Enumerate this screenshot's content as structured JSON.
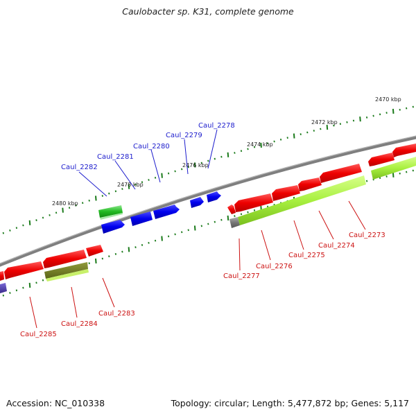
{
  "title": "Caulobacter sp. K31, complete genome",
  "footer": {
    "accession": "Accession: NC_010338",
    "summary": "Topology: circular; Length: 5,477,872 bp; Genes: 5,117"
  },
  "colors": {
    "backbone": "#7f7f7f",
    "tick": "#1a7a1a",
    "forward_label": "#1a1acc",
    "reverse_label": "#cc1111"
  },
  "scale_labels": [
    "2470 kbp",
    "2472 kbp",
    "2474 kbp",
    "2476 kbp",
    "2478 kbp",
    "2480 kbp"
  ],
  "forward_labels": [
    "Caul_2278",
    "Caul_2279",
    "Caul_2280",
    "Caul_2281",
    "Caul_2282"
  ],
  "reverse_labels": [
    "Caul_2273",
    "Caul_2274",
    "Caul_2275",
    "Caul_2276",
    "Caul_2277",
    "Caul_2283",
    "Caul_2284",
    "Caul_2285"
  ]
}
